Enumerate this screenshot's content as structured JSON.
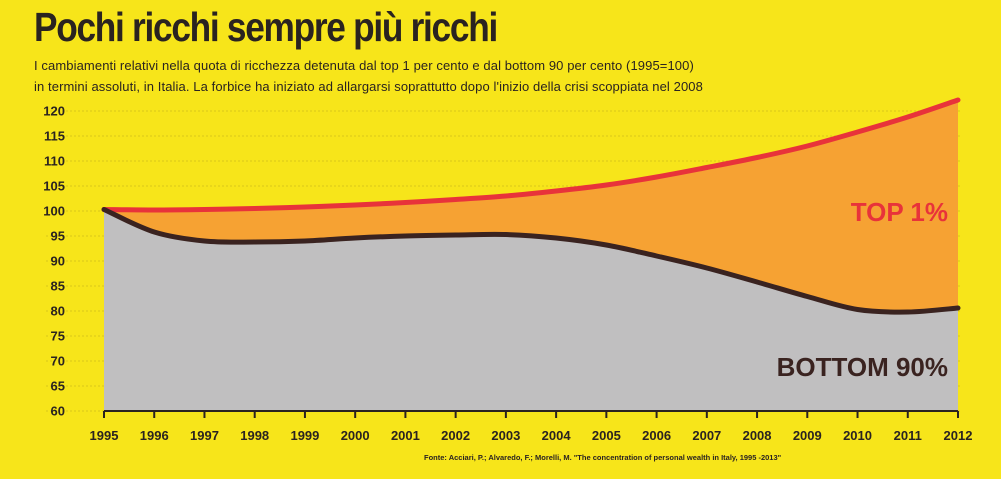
{
  "chart_data": {
    "type": "area",
    "title": "Pochi ricchi sempre più ricchi",
    "subtitle_lines": [
      "I cambiamenti relativi nella quota di ricchezza detenuta dal top 1 per cento e dal bottom 90 per cento (1995=100)",
      "in termini assoluti, in Italia. La forbice ha iniziato ad allargarsi soprattutto dopo l'inizio della crisi scoppiata nel 2008"
    ],
    "source": "Fonte: Acciari, P.; Alvaredo, F.; Morelli, M. \"The concentration of personal wealth in Italy, 1995 -2013\"",
    "x": [
      1995,
      1996,
      1997,
      1998,
      1999,
      2000,
      2001,
      2002,
      2003,
      2004,
      2005,
      2006,
      2007,
      2008,
      2009,
      2010,
      2011,
      2012
    ],
    "x_tick_labels": [
      "1995",
      "1996",
      "1997",
      "1998",
      "1999",
      "2000",
      "2001",
      "2002",
      "2003",
      "2004",
      "2005",
      "2006",
      "2007",
      "2008",
      "2009",
      "2010",
      "2011",
      "2012"
    ],
    "y_tick_labels": [
      "60",
      "65",
      "70",
      "75",
      "80",
      "85",
      "90",
      "95",
      "100",
      "105",
      "110",
      "115",
      "120"
    ],
    "ylim": [
      60,
      122
    ],
    "grid": true,
    "series": [
      {
        "name": "TOP 1%",
        "color": "#e8333a",
        "fill": "#f6a233",
        "values": [
          100.3,
          100.2,
          100.3,
          100.5,
          100.8,
          101.2,
          101.7,
          102.3,
          103.0,
          104.0,
          105.2,
          106.8,
          108.7,
          110.7,
          113.0,
          115.8,
          118.8,
          122.2
        ]
      },
      {
        "name": "BOTTOM 90%",
        "color": "#3a2320",
        "fill": "#c0bfc0",
        "values": [
          100.3,
          95.8,
          94.0,
          93.8,
          94.0,
          94.6,
          95.0,
          95.2,
          95.3,
          94.6,
          93.2,
          91.0,
          88.6,
          85.8,
          82.9,
          80.3,
          79.8,
          80.6
        ]
      }
    ]
  }
}
